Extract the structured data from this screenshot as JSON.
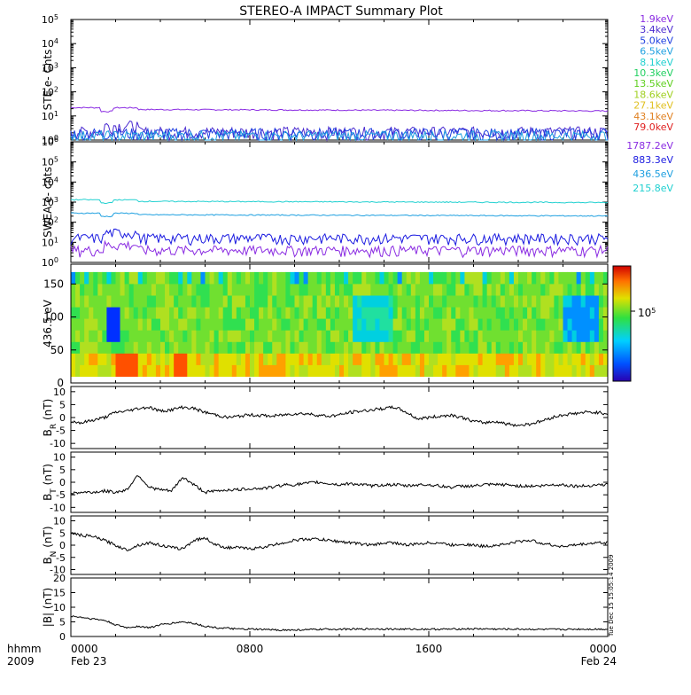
{
  "title": "STEREO-A IMPACT Summary Plot",
  "colors": {
    "ste": [
      "#8a2be2",
      "#4b2bd0",
      "#1f3fe0",
      "#1fa0e0",
      "#20d0d0",
      "#20d060",
      "#60d020",
      "#a0d020",
      "#e0c020",
      "#e08020",
      "#e02020"
    ],
    "swea": [
      "#8a2be2",
      "#1a1ae0",
      "#1fa0e0",
      "#20d0d0"
    ]
  },
  "bottom": {
    "hhmm": "hhmm",
    "year": "2009",
    "ticks": [
      {
        "time": "0000",
        "date": "Feb 23"
      },
      {
        "time": "0800",
        "date": ""
      },
      {
        "time": "1600",
        "date": ""
      },
      {
        "time": "0000",
        "date": "Feb 24"
      }
    ],
    "timestamp": "Tue Dec 15 15:05:14 2009"
  },
  "chart_data": [
    {
      "type": "line",
      "ylabel": "STE e- Cnts",
      "yscale": "log",
      "ylim": [
        1,
        100000
      ],
      "ytick_exp": [
        "0",
        "1",
        "2",
        "3",
        "4",
        "5"
      ],
      "xlim": [
        0,
        24
      ],
      "legend": {
        "placement": "right",
        "entries": [
          "1.9keV",
          "3.4keV",
          "5.0keV",
          "6.5keV",
          "8.1keV",
          "10.3keV",
          "13.5keV",
          "18.6keV",
          "27.1keV",
          "43.1keV",
          "79.0keV"
        ]
      },
      "series": [
        {
          "name": "1.9keV",
          "level": 22
        },
        {
          "name": "3.4keV",
          "level": 1.6
        },
        {
          "name": "5.0keV",
          "level": 1.4
        },
        {
          "name": "6.5keV",
          "level": 1.1
        }
      ]
    },
    {
      "type": "line",
      "ylabel": "SWEA e- cnts",
      "yscale": "log",
      "ylim": [
        1,
        1000000
      ],
      "ytick_exp": [
        "0",
        "1",
        "2",
        "3",
        "4",
        "5",
        "6"
      ],
      "xlim": [
        0,
        24
      ],
      "legend": {
        "placement": "right",
        "entries": [
          "1787.2eV",
          "883.3eV",
          "436.5eV",
          "215.8eV"
        ]
      },
      "series": [
        {
          "name": "1787.2eV",
          "level": 3
        },
        {
          "name": "883.3eV",
          "level": 12
        },
        {
          "name": "436.5eV",
          "level": 280
        },
        {
          "name": "215.8eV",
          "level": 1300
        }
      ]
    },
    {
      "type": "heatmap",
      "ylabel": "436.5 eV",
      "ylim": [
        0,
        180
      ],
      "yticks": [
        0,
        50,
        100,
        150
      ],
      "xlim": [
        0,
        24
      ],
      "colorbar": {
        "label_mantissa": "10",
        "label_exp": "5"
      }
    },
    {
      "type": "line",
      "ylabel": "B",
      "ysub": "R",
      "yunit": "(nT)",
      "ylim": [
        -12,
        12
      ],
      "yticks": [
        -10,
        -5,
        0,
        5,
        10
      ],
      "xlim": [
        0,
        24
      ],
      "x": [
        0,
        0.5,
        1,
        1.5,
        2,
        2.5,
        3,
        3.5,
        4,
        4.5,
        5,
        5.5,
        6,
        6.5,
        7,
        7.5,
        8,
        8.5,
        9,
        9.5,
        10,
        10.5,
        11,
        11.5,
        12,
        12.5,
        13,
        13.5,
        14,
        14.5,
        15,
        15.5,
        16,
        16.5,
        17,
        17.5,
        18,
        18.5,
        19,
        19.5,
        20,
        20.5,
        21,
        21.5,
        22,
        22.5,
        23,
        23.5,
        24
      ],
      "values": [
        -1.5,
        -2,
        -1,
        0,
        2,
        2.5,
        3.5,
        4,
        2.5,
        3,
        4,
        3.5,
        2,
        1,
        0,
        0.5,
        1,
        0.8,
        0.5,
        1,
        1.5,
        1.5,
        1,
        0.5,
        1,
        2,
        2.5,
        3,
        3.5,
        4,
        2,
        -0.5,
        0,
        0.5,
        1,
        0,
        -1.5,
        -2,
        -1.5,
        -2.5,
        -3,
        -2.5,
        -1.5,
        0,
        1,
        1.5,
        2,
        2,
        1.5
      ]
    },
    {
      "type": "line",
      "ylabel": "B",
      "ysub": "T",
      "yunit": "(nT)",
      "ylim": [
        -12,
        12
      ],
      "yticks": [
        -10,
        -5,
        0,
        5,
        10
      ],
      "xlim": [
        0,
        24
      ],
      "x": [
        0,
        0.5,
        1,
        1.5,
        2,
        2.5,
        3,
        3.5,
        4,
        4.5,
        5,
        5.5,
        6,
        6.5,
        7,
        7.5,
        8,
        8.5,
        9,
        9.5,
        10,
        10.5,
        11,
        11.5,
        12,
        12.5,
        13,
        13.5,
        14,
        14.5,
        15,
        15.5,
        16,
        16.5,
        17,
        17.5,
        18,
        18.5,
        19,
        19.5,
        20,
        20.5,
        21,
        21.5,
        22,
        22.5,
        23,
        23.5,
        24
      ],
      "values": [
        -4.5,
        -4,
        -4,
        -3.5,
        -4,
        -3,
        3,
        -2,
        -3,
        -3.5,
        2,
        -1,
        -4,
        -3.5,
        -3,
        -3,
        -2.5,
        -2.5,
        -2,
        -1,
        -1,
        -0.5,
        0,
        -0.5,
        -1,
        -0.5,
        -1,
        -1.5,
        -1,
        -1,
        -1.5,
        -1,
        -1,
        -1.5,
        -2,
        -1.5,
        -1.5,
        -1,
        -1,
        -1,
        -1.5,
        -1.5,
        -1.5,
        -1,
        -1,
        -1.5,
        -1.5,
        -1,
        -1
      ]
    },
    {
      "type": "line",
      "ylabel": "B",
      "ysub": "N",
      "yunit": "(nT)",
      "ylim": [
        -12,
        12
      ],
      "yticks": [
        -10,
        -5,
        0,
        5,
        10
      ],
      "xlim": [
        0,
        24
      ],
      "x": [
        0,
        0.5,
        1,
        1.5,
        2,
        2.5,
        3,
        3.5,
        4,
        4.5,
        5,
        5.5,
        6,
        6.5,
        7,
        7.5,
        8,
        8.5,
        9,
        9.5,
        10,
        10.5,
        11,
        11.5,
        12,
        12.5,
        13,
        13.5,
        14,
        14.5,
        15,
        15.5,
        16,
        16.5,
        17,
        17.5,
        18,
        18.5,
        19,
        19.5,
        20,
        20.5,
        21,
        21.5,
        22,
        22.5,
        23,
        23.5,
        24
      ],
      "values": [
        5,
        4,
        3.5,
        2,
        0,
        -2,
        0,
        1,
        0,
        -1,
        -1.5,
        2,
        3,
        0,
        -1,
        -1,
        -1.5,
        -1,
        0,
        1,
        2,
        2.5,
        2.5,
        2,
        1.5,
        1,
        0.5,
        0,
        1,
        1,
        0,
        0.5,
        1,
        1,
        0,
        0.5,
        0,
        -0.5,
        0,
        0.5,
        1.5,
        2,
        1,
        0,
        -0.5,
        0,
        0.5,
        1,
        1
      ]
    },
    {
      "type": "line",
      "ylabel": "|B|",
      "yunit": "(nT)",
      "ylim": [
        0,
        20
      ],
      "yticks": [
        0,
        5,
        10,
        15,
        20
      ],
      "xlim": [
        0,
        24
      ],
      "x": [
        0,
        0.5,
        1,
        1.5,
        2,
        2.5,
        3,
        3.5,
        4,
        4.5,
        5,
        5.5,
        6,
        6.5,
        7,
        7.5,
        8,
        8.5,
        9,
        9.5,
        10,
        10.5,
        11,
        11.5,
        12,
        12.5,
        13,
        13.5,
        14,
        14.5,
        15,
        15.5,
        16,
        16.5,
        17,
        17.5,
        18,
        18.5,
        19,
        19.5,
        20,
        20.5,
        21,
        21.5,
        22,
        22.5,
        23,
        23.5,
        24
      ],
      "values": [
        7,
        6.5,
        6,
        5.5,
        4,
        3,
        3.5,
        3,
        4,
        4.5,
        5,
        4.5,
        3.5,
        3,
        2.8,
        2.5,
        2.5,
        2.4,
        2.3,
        2.2,
        2.2,
        2.3,
        2.4,
        2.5,
        2.5,
        2.5,
        2.5,
        2.6,
        2.6,
        2.5,
        2.5,
        2.5,
        2.5,
        2.5,
        2.5,
        2.6,
        2.6,
        2.6,
        2.5,
        2.5,
        2.5,
        2.5,
        2.4,
        2.4,
        2.4,
        2.5,
        2.5,
        2.5,
        2.5
      ]
    }
  ]
}
